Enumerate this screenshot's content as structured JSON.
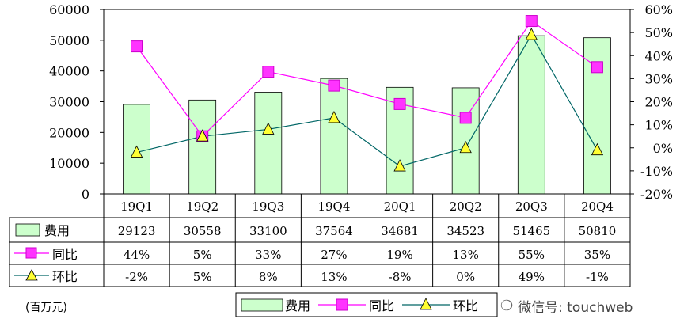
{
  "chart_data": {
    "type": "bar",
    "categories": [
      "19Q1",
      "19Q2",
      "19Q3",
      "19Q4",
      "20Q1",
      "20Q2",
      "20Q3",
      "20Q4"
    ],
    "series": [
      {
        "name": "费用",
        "kind": "bar",
        "axis": "left",
        "values": [
          29123,
          30558,
          33100,
          37564,
          34681,
          34523,
          51465,
          50810
        ],
        "labels": [
          "29123",
          "30558",
          "33100",
          "37564",
          "34681",
          "34523",
          "51465",
          "50810"
        ],
        "color": "#ccffcc"
      },
      {
        "name": "同比",
        "kind": "line",
        "axis": "right",
        "marker": "square",
        "values": [
          44,
          5,
          33,
          27,
          19,
          13,
          55,
          35
        ],
        "labels": [
          "44%",
          "5%",
          "33%",
          "27%",
          "19%",
          "13%",
          "55%",
          "35%"
        ],
        "color": "#ff00ff"
      },
      {
        "name": "环比",
        "kind": "line",
        "axis": "right",
        "marker": "triangle",
        "values": [
          -2,
          5,
          8,
          13,
          -8,
          0,
          49,
          -1
        ],
        "labels": [
          "-2%",
          "5%",
          "8%",
          "13%",
          "-8%",
          "0%",
          "49%",
          "-1%"
        ],
        "color": "#006666"
      }
    ],
    "y_left": {
      "min": 0,
      "max": 60000,
      "ticks": [
        "0",
        "10000",
        "20000",
        "30000",
        "40000",
        "50000",
        "60000"
      ]
    },
    "y_right": {
      "min": -20,
      "max": 60,
      "ticks": [
        "-20%",
        "-10%",
        "0%",
        "10%",
        "20%",
        "30%",
        "40%",
        "50%",
        "60%"
      ]
    },
    "unit_label": "(百万元)",
    "legend_position": "bottom",
    "grid": false,
    "data_table": true
  },
  "watermark": {
    "text": "微信号: touchweb",
    "icon": "wechat-icon"
  }
}
